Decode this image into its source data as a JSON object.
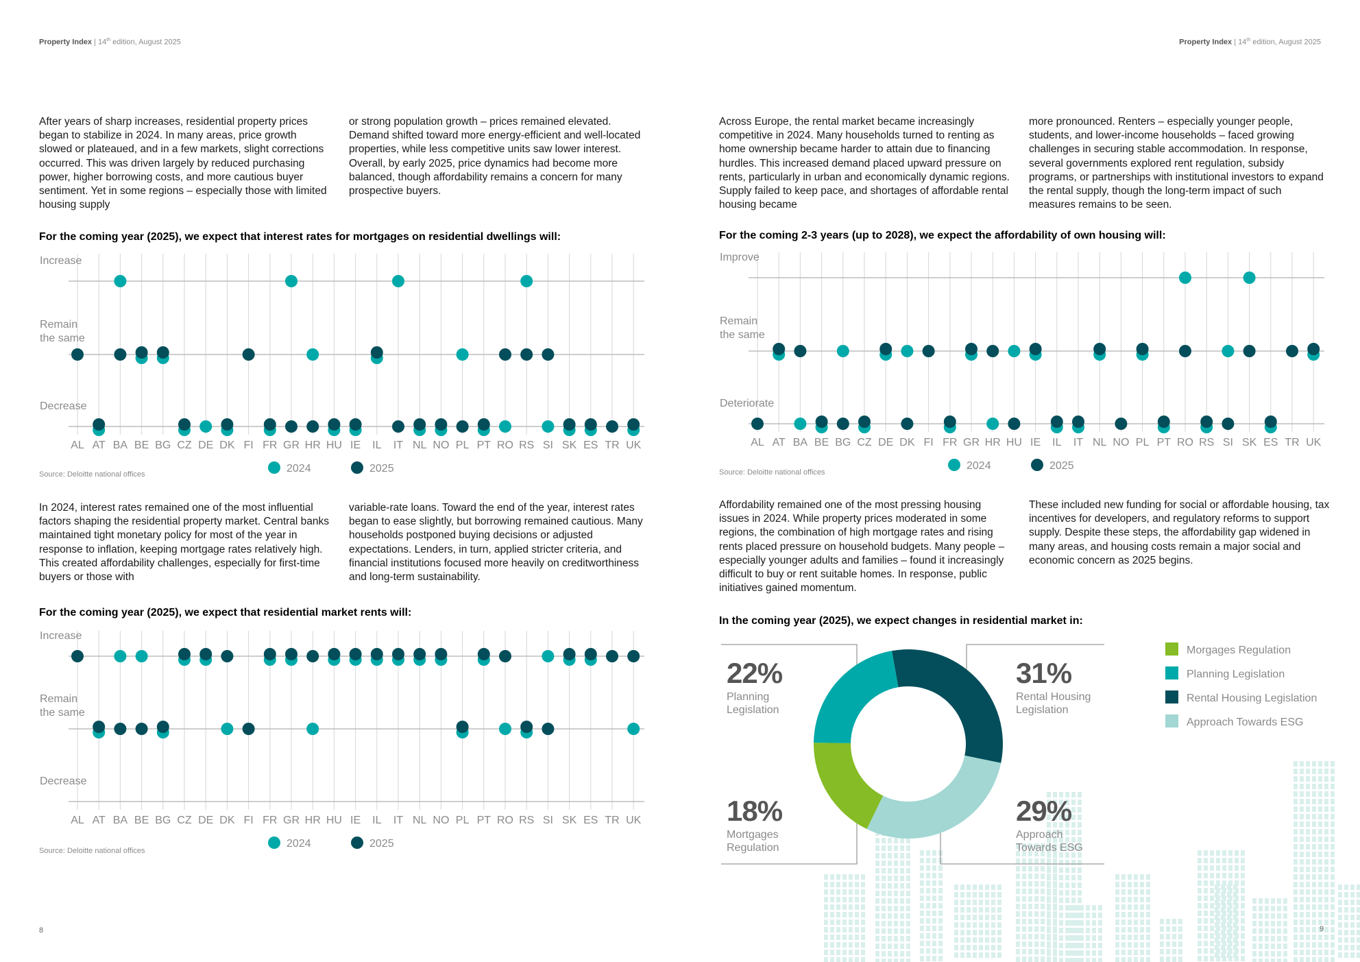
{
  "header_left": {
    "brand": "Property Index",
    "edition": "14",
    "edition_suffix": "th",
    "edition_rest": " edition, August 2025"
  },
  "header_right": {
    "brand": "Property Index",
    "edition": "14",
    "edition_suffix": "th",
    "edition_rest": " edition, August 2025"
  },
  "page_numbers": {
    "left": "8",
    "right": "9"
  },
  "paragraphs": {
    "left_top_col1": "After years of sharp increases, residential property prices began to stabilize in 2024. In many areas, price growth slowed or plateaued, and in a few markets, slight corrections occurred. This was driven largely by reduced purchasing power, higher borrowing costs, and more cautious buyer sentiment. Yet in some regions – especially those with limited housing supply",
    "left_top_col2": "or strong population growth – prices remained elevated. Demand shifted toward more energy-efficient and well-located properties, while less competitive units saw lower interest. Overall, by early 2025, price dynamics had become more balanced, though affordability remains a concern for many prospective buyers.",
    "left_mid_col1": "In 2024, interest rates remained one of the most influential factors shaping the residential property market. Central banks maintained tight monetary policy for most of the year in response to inflation, keeping mortgage rates relatively high. This created affordability challenges, especially for first-time buyers or those with",
    "left_mid_col2": "variable-rate loans. Toward the end of the year, interest rates began to ease slightly, but borrowing remained cautious. Many households postponed buying decisions or adjusted expectations. Lenders, in turn, applied stricter criteria, and financial institutions focused more heavily on creditworthiness and long-term sustainability.",
    "right_top_col1": "Across Europe, the rental market became increasingly competitive in 2024. Many households turned to renting as home ownership became harder to attain due to financing hurdles. This increased demand placed upward pressure on rents, particularly in urban and economically dynamic regions. Supply failed to keep pace, and shortages of affordable rental housing became",
    "right_top_col2": "more pronounced. Renters – especially younger people, students, and lower-income households – faced growing challenges in securing stable accommodation. In response, several governments explored rent regulation, subsidy programs, or partnerships with institutional investors to expand the rental supply, though the long-term impact of such measures remains to be seen.",
    "right_mid_col1": "Affordability remained one of the most pressing housing issues in 2024. While property prices moderated in some regions, the combination of high mortgage rates and rising rents placed pressure on household budgets. Many people – especially younger adults and families – found it increasingly difficult to buy or rent suitable homes. In response, public initiatives gained momentum.",
    "right_mid_col2": "These included new funding for social or affordable housing, tax incentives for developers, and regulatory reforms to support supply. Despite these steps, the affordability gap widened in many areas, and housing costs remain a major social and economic concern as 2025 begins."
  },
  "colors": {
    "c2024": "#00a9a9",
    "c2025": "#034e5a",
    "grid": "#d6d6d6",
    "axis": "#bdbdbd",
    "label": "#8a8a8a"
  },
  "chart_data": [
    {
      "type": "scatter",
      "title": "For the coming year (2025), we expect that interest rates for mortgages on residential dwellings will:",
      "source": "Source: Deloitte national offices",
      "levels": [
        "Increase",
        "Remain the same",
        "Decrease"
      ],
      "categories": [
        "AL",
        "AT",
        "BA",
        "BE",
        "BG",
        "CZ",
        "DE",
        "DK",
        "FI",
        "FR",
        "GR",
        "HR",
        "HU",
        "IE",
        "IL",
        "IT",
        "NL",
        "NO",
        "PL",
        "PT",
        "RO",
        "RS",
        "SI",
        "SK",
        "ES",
        "TR",
        "UK"
      ],
      "series": [
        {
          "name": "2024",
          "values": [
            null,
            "Decrease",
            "Increase",
            "Remain the same",
            "Remain the same",
            "Decrease",
            "Decrease",
            "Decrease",
            null,
            "Decrease",
            "Increase",
            "Remain the same",
            "Decrease",
            "Decrease",
            "Remain the same",
            "Increase",
            "Decrease",
            "Decrease",
            "Remain the same",
            "Decrease",
            "Decrease",
            "Increase",
            "Decrease",
            "Decrease",
            "Decrease",
            null,
            "Decrease"
          ]
        },
        {
          "name": "2025",
          "values": [
            "Remain the same",
            "Decrease",
            "Remain the same",
            "Remain the same",
            "Remain the same",
            "Decrease",
            null,
            "Decrease",
            "Remain the same",
            "Decrease",
            "Decrease",
            "Decrease",
            "Decrease",
            "Decrease",
            "Remain the same",
            "Decrease",
            "Decrease",
            "Decrease",
            "Decrease",
            "Decrease",
            "Remain the same",
            "Remain the same",
            "Remain the same",
            "Decrease",
            "Decrease",
            "Decrease",
            "Decrease"
          ]
        }
      ]
    },
    {
      "type": "scatter",
      "title": "For the coming year (2025), we expect that residential market rents will:",
      "source": "Source: Deloitte national offices",
      "levels": [
        "Increase",
        "Remain the same",
        "Decrease"
      ],
      "categories": [
        "AL",
        "AT",
        "BA",
        "BE",
        "BG",
        "CZ",
        "DE",
        "DK",
        "FI",
        "FR",
        "GR",
        "HR",
        "HU",
        "IE",
        "IL",
        "IT",
        "NL",
        "NO",
        "PL",
        "PT",
        "RO",
        "RS",
        "SI",
        "SK",
        "ES",
        "TR",
        "UK"
      ],
      "series": [
        {
          "name": "2024",
          "values": [
            null,
            "Remain the same",
            "Increase",
            "Increase",
            "Remain the same",
            "Increase",
            "Increase",
            "Remain the same",
            null,
            "Increase",
            "Increase",
            "Remain the same",
            "Increase",
            "Increase",
            "Increase",
            "Increase",
            "Increase",
            "Increase",
            "Remain the same",
            "Increase",
            "Remain the same",
            "Remain the same",
            "Increase",
            "Increase",
            "Increase",
            null,
            "Remain the same"
          ]
        },
        {
          "name": "2025",
          "values": [
            "Increase",
            "Remain the same",
            "Remain the same",
            "Remain the same",
            "Remain the same",
            "Increase",
            "Increase",
            "Increase",
            "Remain the same",
            "Increase",
            "Increase",
            "Increase",
            "Increase",
            "Increase",
            "Increase",
            "Increase",
            "Increase",
            "Increase",
            "Remain the same",
            "Increase",
            "Increase",
            "Remain the same",
            "Remain the same",
            "Increase",
            "Increase",
            "Increase",
            "Increase"
          ]
        }
      ]
    },
    {
      "type": "scatter",
      "title": "For the coming 2-3 years (up to 2028), we expect the affordability of own housing will:",
      "source": "Source: Deloitte national offices",
      "levels": [
        "Improve",
        "Remain the same",
        "Deteriorate"
      ],
      "categories": [
        "AL",
        "AT",
        "BA",
        "BE",
        "BG",
        "CZ",
        "DE",
        "DK",
        "FI",
        "FR",
        "GR",
        "HR",
        "HU",
        "IE",
        "IL",
        "IT",
        "NL",
        "NO",
        "PL",
        "PT",
        "RO",
        "RS",
        "SI",
        "SK",
        "ES",
        "TR",
        "UK"
      ],
      "series": [
        {
          "name": "2024",
          "values": [
            null,
            "Remain the same",
            "Deteriorate",
            "Deteriorate",
            "Remain the same",
            "Deteriorate",
            "Remain the same",
            "Remain the same",
            null,
            "Deteriorate",
            "Remain the same",
            "Deteriorate",
            "Remain the same",
            "Remain the same",
            "Deteriorate",
            "Deteriorate",
            "Remain the same",
            null,
            "Remain the same",
            "Deteriorate",
            "Improve",
            "Deteriorate",
            "Remain the same",
            "Improve",
            "Deteriorate",
            null,
            "Remain the same"
          ]
        },
        {
          "name": "2025",
          "values": [
            "Deteriorate",
            "Remain the same",
            "Remain the same",
            "Deteriorate",
            "Deteriorate",
            "Deteriorate",
            "Remain the same",
            "Deteriorate",
            "Remain the same",
            "Deteriorate",
            "Remain the same",
            "Remain the same",
            "Deteriorate",
            "Remain the same",
            "Deteriorate",
            "Deteriorate",
            "Remain the same",
            "Deteriorate",
            "Remain the same",
            "Deteriorate",
            "Remain the same",
            "Deteriorate",
            "Deteriorate",
            "Remain the same",
            "Deteriorate",
            "Remain the same",
            "Remain the same"
          ]
        }
      ]
    },
    {
      "type": "pie",
      "title": "In the coming year (2025), we expect changes in residential market in:",
      "slices": [
        {
          "label": "Rental Housing Legislation",
          "value": 31,
          "color": "#034e5a"
        },
        {
          "label": "Approach Towards ESG",
          "value": 29,
          "color": "#a2d7d3"
        },
        {
          "label": "Mortgages Regulation",
          "value": 18,
          "color": "#86bc25"
        },
        {
          "label": "Planning Legislation",
          "value": 22,
          "color": "#00a9a9"
        }
      ],
      "callouts": [
        {
          "pct": "22%",
          "line1": "Planning",
          "line2": "Legislation"
        },
        {
          "pct": "31%",
          "line1": "Rental Housing",
          "line2": "Legislation"
        },
        {
          "pct": "18%",
          "line1": "Mortgages",
          "line2": "Regulation"
        },
        {
          "pct": "29%",
          "line1": "Approach",
          "line2": "Towards ESG"
        }
      ],
      "legend": [
        {
          "label": "Morgages Regulation",
          "color": "#86bc25"
        },
        {
          "label": "Planning Legislation",
          "color": "#00a9a9"
        },
        {
          "label": "Rental Housing Legislation",
          "color": "#034e5a"
        },
        {
          "label": "Approach Towards ESG",
          "color": "#a2d7d3"
        }
      ]
    }
  ],
  "legend_years": [
    "2024",
    "2025"
  ]
}
